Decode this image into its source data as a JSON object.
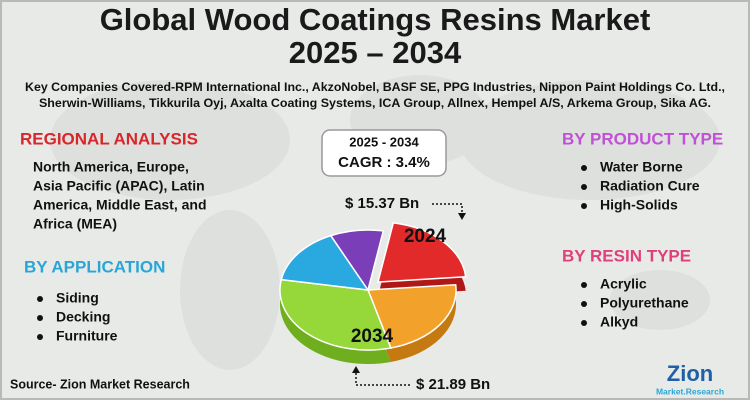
{
  "header": {
    "title_line1": "Global Wood Coatings Resins Market",
    "title_line2": "2025 – 2034",
    "companies_line1": "Key Companies Covered-RPM International Inc., AkzoNobel, BASF SE, PPG Industries, Nippon Paint Holdings Co. Ltd.,",
    "companies_line2": "Sherwin-Williams, Tikkurila Oyj, Axalta Coating Systems, ICA Group, Allnex, Hempel A/S, Arkema Group, Sika AG."
  },
  "regional_analysis": {
    "heading": "REGIONAL ANALYSIS",
    "text_lines": [
      "North America, Europe,",
      "Asia Pacific (APAC), Latin",
      "America, Middle East, and",
      "Africa (MEA)"
    ]
  },
  "by_application": {
    "heading": "BY APPLICATION",
    "items": [
      "Siding",
      "Decking",
      "Furniture"
    ]
  },
  "forecast": {
    "period": "2025 - 2034",
    "cagr": "CAGR : 3.4%",
    "label_2024": "2024",
    "label_2034": "2034",
    "value_2024": "$ 15.37 Bn",
    "value_2034": "$ 21.89 Bn"
  },
  "by_product_type": {
    "heading": "BY PRODUCT TYPE",
    "items": [
      "Water Borne",
      "Radiation Cure",
      "High-Solids"
    ]
  },
  "by_resin_type": {
    "heading": "BY RESIN TYPE",
    "items": [
      "Acrylic",
      "Polyurethane",
      "Alkyd"
    ]
  },
  "source": "Source- Zion Market Research",
  "logo": {
    "name": "Zion",
    "tagline": "Market.Research"
  }
}
